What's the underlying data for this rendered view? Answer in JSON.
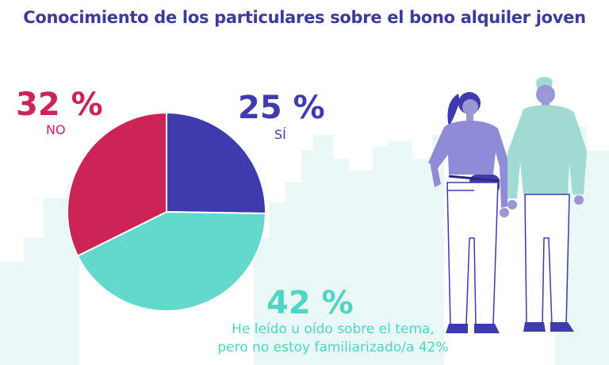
{
  "title": "Conocimiento de los particulares sobre el bono alquiler joven",
  "colors": {
    "si": "#3f3aad",
    "no": "#cc2456",
    "heard": "#62d9ca",
    "title": "#3d3a9e",
    "skyline": "#e9f7f5"
  },
  "labels": {
    "no_pct": "32 %",
    "no_text": "NO",
    "si_pct": "25 %",
    "si_text": "SÍ",
    "heard_pct": "42 %",
    "heard_line1": "He leído u oído sobre el tema,",
    "heard_line2": "pero no estoy familiarizado/a 42%"
  },
  "chart_data": {
    "type": "pie",
    "title": "Conocimiento de los particulares sobre el bono alquiler joven",
    "slices": [
      {
        "label": "SÍ",
        "value": 25,
        "color": "#3f3aad"
      },
      {
        "label": "He leído u oído sobre el tema, pero no estoy familiarizado/a",
        "value": 42,
        "color": "#62d9ca"
      },
      {
        "label": "NO",
        "value": 32,
        "color": "#cc2456"
      }
    ],
    "start_angle_deg": 0,
    "direction": "clockwise"
  },
  "illustration": {
    "figures": [
      "woman-with-belt-bag",
      "man-with-sweater"
    ]
  }
}
